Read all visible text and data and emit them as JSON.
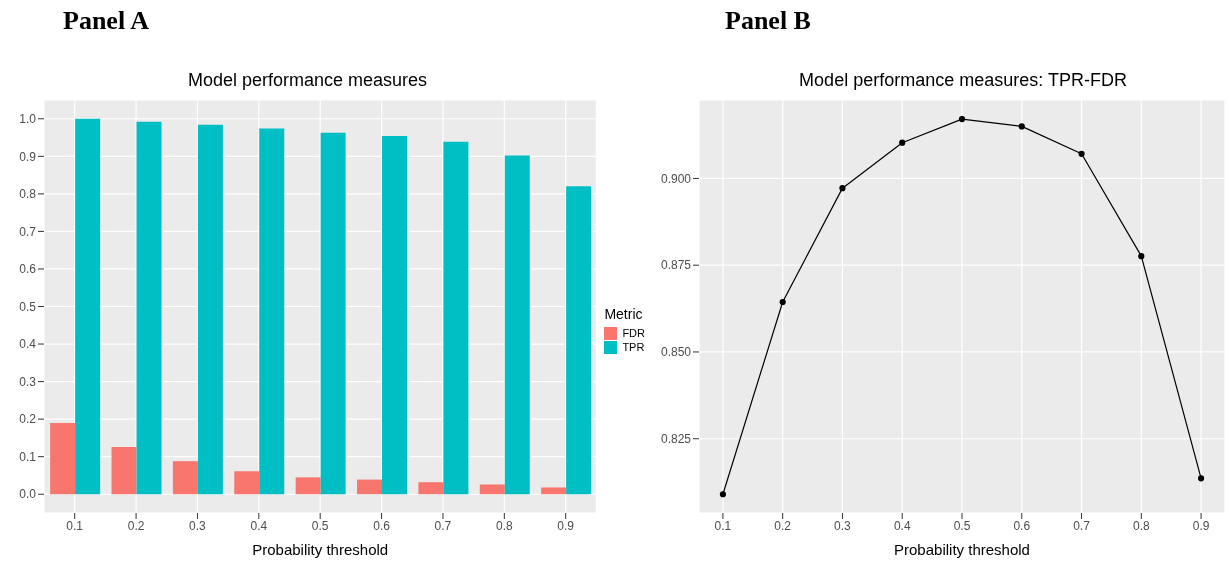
{
  "chart_data": [
    {
      "type": "bar",
      "title": "Model performance measures",
      "annotations": [
        "Panel A"
      ],
      "xlabel": "Probability threshold",
      "legend_title": "Metric",
      "legend": "right",
      "grid": true,
      "categories": [
        "0.1",
        "0.2",
        "0.3",
        "0.4",
        "0.5",
        "0.6",
        "0.7",
        "0.8",
        "0.9"
      ],
      "series": [
        {
          "name": "FDR",
          "color": "#f8766d",
          "values": [
            0.19,
            0.126,
            0.088,
            0.061,
            0.045,
            0.039,
            0.032,
            0.026,
            0.018
          ]
        },
        {
          "name": "TPR",
          "color": "#00bfc4",
          "values": [
            1.0,
            0.992,
            0.984,
            0.974,
            0.963,
            0.954,
            0.939,
            0.902,
            0.82
          ]
        }
      ],
      "ylim": [
        -0.05,
        1.05
      ],
      "yticks": [
        {
          "value": 0,
          "label": "0.0"
        },
        0.1,
        0.2,
        0.3,
        0.4,
        0.5,
        0.6,
        0.7,
        0.8,
        0.9,
        {
          "value": 1,
          "label": "1.0"
        }
      ]
    },
    {
      "type": "line",
      "title": "Model performance measures: TPR-FDR",
      "annotations": [
        "Panel B"
      ],
      "xlabel": "Probability threshold",
      "grid": true,
      "marker": "circle",
      "x": [
        0.1,
        0.2,
        0.3,
        0.4,
        0.5,
        0.6,
        0.7,
        0.8,
        0.9
      ],
      "series": [
        {
          "color": "#000000",
          "values": [
            0.809,
            0.8644,
            0.8972,
            0.9103,
            0.9171,
            0.915,
            0.9071,
            0.8776,
            0.8136
          ]
        }
      ],
      "xlim": [
        0.06,
        0.94
      ],
      "xticks": [
        0.1,
        0.2,
        0.3,
        0.4,
        0.5,
        0.6,
        0.7,
        0.8,
        0.9
      ],
      "ylim": [
        0.8036,
        0.9226
      ],
      "yticks": [
        {
          "value": 0.825,
          "label": "0.825"
        },
        {
          "value": 0.85,
          "label": "0.850"
        },
        {
          "value": 0.875,
          "label": "0.875"
        },
        {
          "value": 0.9,
          "label": "0.900"
        }
      ]
    }
  ]
}
